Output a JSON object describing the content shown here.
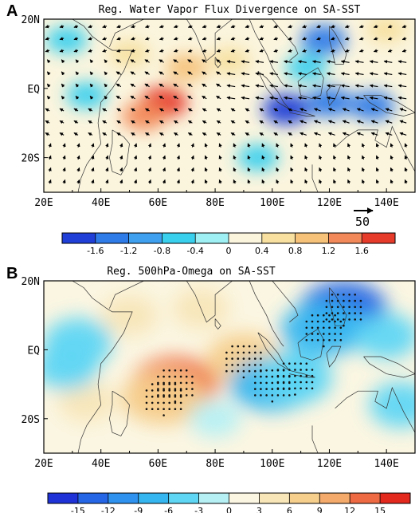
{
  "chart_data": [
    {
      "panel": "A",
      "type": "heatmap",
      "title": "Reg. Water Vapor Flux Divergence on  SA-SST",
      "xlim": [
        20,
        150
      ],
      "ylim": [
        -30,
        20
      ],
      "x_ticks": [
        {
          "v": 20,
          "label": "20E"
        },
        {
          "v": 40,
          "label": "40E"
        },
        {
          "v": 60,
          "label": "60E"
        },
        {
          "v": 80,
          "label": "80E"
        },
        {
          "v": 100,
          "label": "100E"
        },
        {
          "v": 120,
          "label": "120E"
        },
        {
          "v": 140,
          "label": "140E"
        }
      ],
      "y_ticks": [
        {
          "v": 20,
          "label": "20N"
        },
        {
          "v": 0,
          "label": "EQ"
        },
        {
          "v": -20,
          "label": "20S"
        }
      ],
      "colorbar": {
        "levels": [
          "-1.6",
          "-1.2",
          "-0.8",
          "-0.4",
          "0",
          "0.4",
          "0.8",
          "1.2",
          "1.6"
        ],
        "colors": [
          "#1f3fd6",
          "#2f7be8",
          "#3fa0f0",
          "#39d0ee",
          "#9ff0f4",
          "#fbf5de",
          "#f7e0a0",
          "#f6c27a",
          "#f2895a",
          "#e63a2b"
        ]
      },
      "vector_reference": {
        "label": "50"
      },
      "anomalies": [
        {
          "lon": 62,
          "lat": -4,
          "value": 1.8
        },
        {
          "lon": 55,
          "lat": -8,
          "value": 1.2
        },
        {
          "lon": 70,
          "lat": 6,
          "value": 0.8
        },
        {
          "lon": 50,
          "lat": 10,
          "value": 0.6
        },
        {
          "lon": 85,
          "lat": 8,
          "value": 0.6
        },
        {
          "lon": 105,
          "lat": -6,
          "value": -1.8
        },
        {
          "lon": 120,
          "lat": -4,
          "value": -1.6
        },
        {
          "lon": 135,
          "lat": -5,
          "value": -1.3
        },
        {
          "lon": 118,
          "lat": 14,
          "value": -1.6
        },
        {
          "lon": 112,
          "lat": 6,
          "value": -0.8
        },
        {
          "lon": 35,
          "lat": -2,
          "value": -0.6
        },
        {
          "lon": 28,
          "lat": 14,
          "value": -0.7
        },
        {
          "lon": 95,
          "lat": -20,
          "value": -0.6
        },
        {
          "lon": 140,
          "lat": 17,
          "value": 0.6
        }
      ]
    },
    {
      "panel": "B",
      "type": "heatmap",
      "title": "Reg. 500hPa-Omega on SA-SST",
      "xlim": [
        20,
        150
      ],
      "ylim": [
        -30,
        20
      ],
      "x_ticks": [
        {
          "v": 20,
          "label": "20E"
        },
        {
          "v": 40,
          "label": "40E"
        },
        {
          "v": 60,
          "label": "60E"
        },
        {
          "v": 80,
          "label": "80E"
        },
        {
          "v": 100,
          "label": "100E"
        },
        {
          "v": 120,
          "label": "120E"
        },
        {
          "v": 140,
          "label": "140E"
        }
      ],
      "y_ticks": [
        {
          "v": 20,
          "label": "20N"
        },
        {
          "v": 0,
          "label": "EQ"
        },
        {
          "v": -20,
          "label": "20S"
        }
      ],
      "colorbar": {
        "levels": [
          "-15",
          "-12",
          "-9",
          "-6",
          "-3",
          "0",
          "3",
          "6",
          "9",
          "12",
          "15"
        ],
        "colors": [
          "#1e32d8",
          "#2466e6",
          "#2e92ee",
          "#36b6f0",
          "#5fd6f4",
          "#b6f0f4",
          "#fbf6e2",
          "#f8e6b8",
          "#f6cf8c",
          "#f3aa6a",
          "#ee6a42",
          "#e3281e"
        ]
      },
      "anomalies": [
        {
          "lon": 66,
          "lat": -10,
          "value": 13
        },
        {
          "lon": 62,
          "lat": -14,
          "value": 8
        },
        {
          "lon": 90,
          "lat": -3,
          "value": 6
        },
        {
          "lon": 50,
          "lat": 10,
          "value": 3
        },
        {
          "lon": 75,
          "lat": 12,
          "value": 3
        },
        {
          "lon": 35,
          "lat": -15,
          "value": 3
        },
        {
          "lon": 125,
          "lat": 12,
          "value": -15
        },
        {
          "lon": 118,
          "lat": 6,
          "value": -9
        },
        {
          "lon": 100,
          "lat": -10,
          "value": -8
        },
        {
          "lon": 108,
          "lat": -8,
          "value": -6
        },
        {
          "lon": 32,
          "lat": 2,
          "value": -5
        },
        {
          "lon": 28,
          "lat": -5,
          "value": -4
        },
        {
          "lon": 140,
          "lat": 4,
          "value": -4
        },
        {
          "lon": 145,
          "lat": -16,
          "value": -4
        },
        {
          "lon": 80,
          "lat": -20,
          "value": -2
        }
      ],
      "significance": "stippled"
    }
  ]
}
